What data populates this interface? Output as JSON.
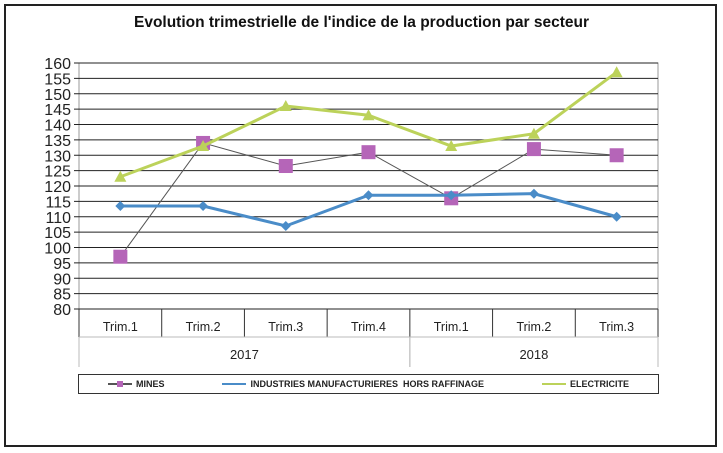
{
  "chart_data": {
    "type": "line",
    "title": "Evolution trimestrielle de l'indice de la production par secteur",
    "categories": [
      "Trim.1",
      "Trim.2",
      "Trim.3",
      "Trim.4",
      "Trim.1",
      "Trim.2",
      "Trim.3"
    ],
    "groups": [
      {
        "label": "2017",
        "count": 4
      },
      {
        "label": "2018",
        "count": 3
      }
    ],
    "ylim": [
      80,
      160
    ],
    "yticks": [
      80,
      85,
      90,
      95,
      100,
      105,
      110,
      115,
      120,
      125,
      130,
      135,
      140,
      145,
      150,
      155,
      160
    ],
    "grid": true,
    "legend_position": "bottom",
    "series": [
      {
        "name": "MINES",
        "color": "#b565b8",
        "line_color": "#555555",
        "marker": "square",
        "values": [
          97,
          134,
          126.5,
          131,
          116,
          132,
          130
        ]
      },
      {
        "name": "INDUSTRIES MANUFACTURIERES  HORS RAFFINAGE",
        "color": "#4a8cc8",
        "marker": "diamond",
        "values": [
          113.5,
          113.5,
          107,
          117,
          117,
          117.5,
          110
        ]
      },
      {
        "name": "ELECTRICITE",
        "color": "#bcd25a",
        "marker": "triangle",
        "values": [
          123,
          133,
          146,
          143,
          133,
          137,
          157
        ]
      }
    ]
  }
}
